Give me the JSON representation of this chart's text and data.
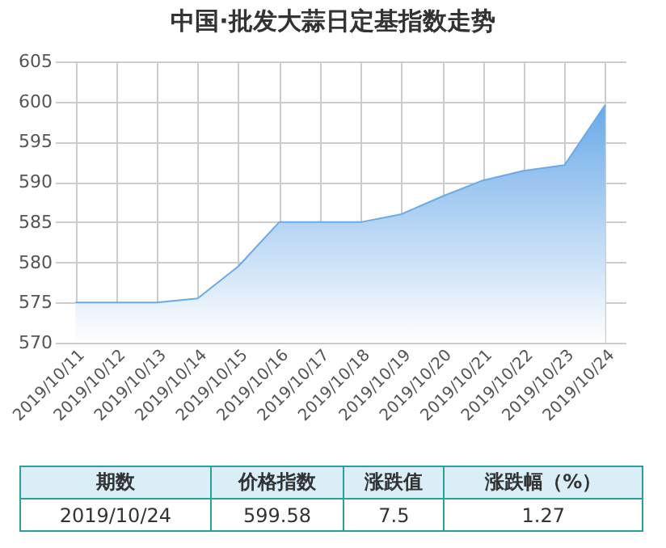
{
  "chart_data": {
    "type": "area",
    "title": "中国·批发大蒜日定基指数走势",
    "categories": [
      "2019/10/11",
      "2019/10/12",
      "2019/10/13",
      "2019/10/14",
      "2019/10/15",
      "2019/10/16",
      "2019/10/17",
      "2019/10/18",
      "2019/10/19",
      "2019/10/20",
      "2019/10/21",
      "2019/10/22",
      "2019/10/23",
      "2019/10/24"
    ],
    "values": [
      575,
      575,
      575,
      575.5,
      579.5,
      585,
      585,
      585,
      586,
      588.2,
      590.2,
      591.4,
      592.1,
      599.6
    ],
    "color": "#6aaae8",
    "ylim": [
      570,
      605
    ],
    "yticks": [
      570,
      575,
      580,
      585,
      590,
      595,
      600,
      605
    ],
    "grid": true,
    "annotations": [
      "期数",
      "价格指数",
      "涨跌值",
      "涨跌幅（%）",
      "2019/10/24",
      "599.58",
      "7.5",
      "1.27"
    ]
  }
}
